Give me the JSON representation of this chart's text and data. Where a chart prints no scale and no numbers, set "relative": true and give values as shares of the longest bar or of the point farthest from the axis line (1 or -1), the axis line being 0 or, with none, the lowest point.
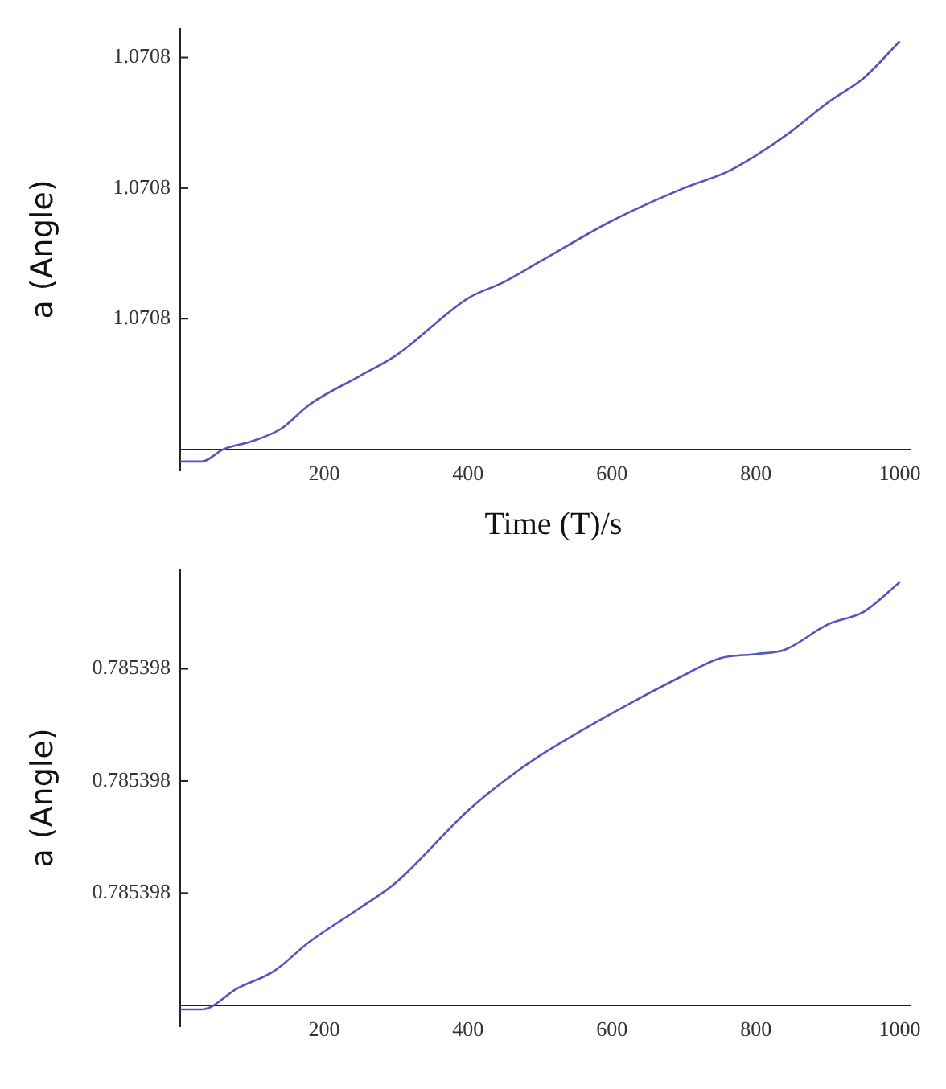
{
  "chart_data": [
    {
      "type": "line",
      "xlabel": "Time (T)/s",
      "ylabel": "a (Angle)",
      "grid": false,
      "legend": false,
      "marker": "none",
      "line_style": "solid",
      "relative": true,
      "annotations": [
        "1.0708",
        "1.0708",
        "1.0708"
      ],
      "xlim": [
        0,
        1015
      ],
      "xticks": [
        200,
        400,
        600,
        800,
        1000
      ],
      "x": [
        0,
        30,
        60,
        100,
        140,
        180,
        250,
        300,
        400,
        450,
        500,
        600,
        700,
        760,
        800,
        850,
        900,
        950,
        1000
      ],
      "series": [
        {
          "color": "#5555bb",
          "values": [
            -0.03,
            -0.03,
            0,
            0.02,
            0.05,
            0.11,
            0.18,
            0.23,
            0.37,
            0.41,
            0.46,
            0.56,
            0.64,
            0.68,
            0.72,
            0.78,
            0.85,
            0.91,
            1
          ]
        }
      ]
    },
    {
      "type": "line",
      "ylabel": "a (Angle)",
      "grid": false,
      "legend": false,
      "marker": "none",
      "line_style": "solid",
      "relative": true,
      "annotations": [
        "0.785398",
        "0.785398",
        "0.785398"
      ],
      "xlim": [
        0,
        1015
      ],
      "xticks": [
        200,
        400,
        600,
        800,
        1000
      ],
      "x": [
        0,
        30,
        80,
        130,
        180,
        250,
        300,
        400,
        450,
        500,
        600,
        700,
        750,
        800,
        840,
        900,
        950,
        1000
      ],
      "series": [
        {
          "color": "#5555bb",
          "values": [
            -0.01,
            -0.01,
            0.04,
            0.08,
            0.15,
            0.23,
            0.29,
            0.46,
            0.53,
            0.59,
            0.69,
            0.78,
            0.82,
            0.83,
            0.84,
            0.9,
            0.93,
            1
          ]
        }
      ]
    }
  ]
}
